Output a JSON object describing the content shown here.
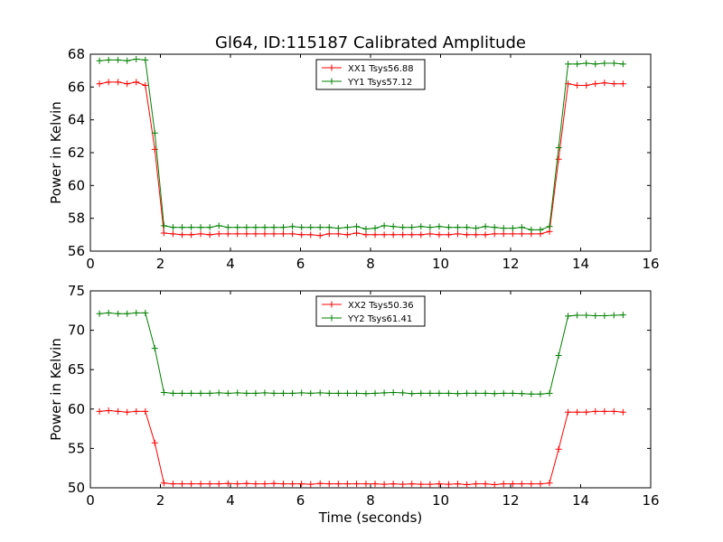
{
  "figure": {
    "title": "Gl64, ID:115187 Calibrated Amplitude"
  },
  "chart_data": [
    {
      "type": "line",
      "title": "Gl64, ID:115187 Calibrated Amplitude",
      "xlabel": "",
      "ylabel": "Power in Kelvin",
      "xlim": [
        0,
        16
      ],
      "ylim": [
        56,
        68
      ],
      "xticks": [
        0,
        2,
        4,
        6,
        8,
        10,
        12,
        14,
        16
      ],
      "yticks": [
        56,
        58,
        60,
        62,
        64,
        66,
        68
      ],
      "grid": false,
      "legend_position": "top-center",
      "x": [
        0.26,
        0.52,
        0.79,
        1.05,
        1.31,
        1.57,
        1.84,
        2.1,
        2.36,
        2.62,
        2.88,
        3.15,
        3.41,
        3.67,
        3.93,
        4.2,
        4.46,
        4.72,
        4.98,
        5.24,
        5.51,
        5.77,
        6.03,
        6.29,
        6.56,
        6.82,
        7.08,
        7.34,
        7.6,
        7.87,
        8.13,
        8.39,
        8.65,
        8.92,
        9.18,
        9.44,
        9.7,
        9.96,
        10.23,
        10.49,
        10.75,
        11.01,
        11.28,
        11.54,
        11.8,
        12.06,
        12.32,
        12.59,
        12.85,
        13.11,
        13.37,
        13.64,
        13.9,
        14.16,
        14.42,
        14.68,
        14.95,
        15.21
      ],
      "series": [
        {
          "name": "XX1 Tsys56.88",
          "color": "#ff0000",
          "values": [
            66.2,
            66.3,
            66.3,
            66.2,
            66.3,
            66.1,
            62.2,
            57.1,
            57.05,
            57.0,
            57.0,
            57.05,
            57.0,
            57.05,
            57.05,
            57.05,
            57.05,
            57.05,
            57.05,
            57.05,
            57.05,
            57.05,
            57.0,
            57.0,
            56.95,
            57.05,
            57.05,
            57.0,
            57.1,
            57.0,
            57.0,
            57.0,
            57.0,
            57.0,
            57.0,
            57.0,
            57.05,
            57.0,
            57.0,
            57.05,
            57.0,
            57.0,
            57.0,
            57.05,
            57.05,
            57.05,
            57.05,
            57.05,
            57.05,
            57.2,
            61.6,
            66.2,
            66.1,
            66.1,
            66.2,
            66.25,
            66.2,
            66.2
          ]
        },
        {
          "name": "YY1 Tsys57.12",
          "color": "#008000",
          "values": [
            67.6,
            67.65,
            67.65,
            67.6,
            67.7,
            67.65,
            63.2,
            57.55,
            57.45,
            57.45,
            57.45,
            57.45,
            57.45,
            57.55,
            57.45,
            57.45,
            57.45,
            57.45,
            57.45,
            57.45,
            57.45,
            57.5,
            57.45,
            57.45,
            57.45,
            57.45,
            57.4,
            57.45,
            57.5,
            57.35,
            57.4,
            57.55,
            57.5,
            57.45,
            57.45,
            57.5,
            57.45,
            57.5,
            57.45,
            57.45,
            57.45,
            57.4,
            57.5,
            57.45,
            57.4,
            57.4,
            57.45,
            57.3,
            57.3,
            57.5,
            62.3,
            67.4,
            67.4,
            67.45,
            67.4,
            67.45,
            67.45,
            67.4
          ]
        }
      ]
    },
    {
      "type": "line",
      "title": "",
      "xlabel": "Time (seconds)",
      "ylabel": "Power in Kelvin",
      "xlim": [
        0,
        16
      ],
      "ylim": [
        50,
        75
      ],
      "xticks": [
        0,
        2,
        4,
        6,
        8,
        10,
        12,
        14,
        16
      ],
      "yticks": [
        50,
        55,
        60,
        65,
        70,
        75
      ],
      "grid": false,
      "legend_position": "top-center",
      "x": [
        0.26,
        0.52,
        0.79,
        1.05,
        1.31,
        1.57,
        1.84,
        2.1,
        2.36,
        2.62,
        2.88,
        3.15,
        3.41,
        3.67,
        3.93,
        4.2,
        4.46,
        4.72,
        4.98,
        5.24,
        5.51,
        5.77,
        6.03,
        6.29,
        6.56,
        6.82,
        7.08,
        7.34,
        7.6,
        7.87,
        8.13,
        8.39,
        8.65,
        8.92,
        9.18,
        9.44,
        9.7,
        9.96,
        10.23,
        10.49,
        10.75,
        11.01,
        11.28,
        11.54,
        11.8,
        12.06,
        12.32,
        12.59,
        12.85,
        13.11,
        13.37,
        13.64,
        13.9,
        14.16,
        14.42,
        14.68,
        14.95,
        15.21
      ],
      "series": [
        {
          "name": "XX2 Tsys50.36",
          "color": "#ff0000",
          "values": [
            59.7,
            59.8,
            59.7,
            59.6,
            59.7,
            59.7,
            55.7,
            50.6,
            50.5,
            50.5,
            50.5,
            50.5,
            50.5,
            50.5,
            50.55,
            50.5,
            50.55,
            50.5,
            50.5,
            50.55,
            50.5,
            50.5,
            50.5,
            50.45,
            50.55,
            50.5,
            50.5,
            50.5,
            50.5,
            50.5,
            50.5,
            50.45,
            50.5,
            50.45,
            50.5,
            50.45,
            50.45,
            50.5,
            50.45,
            50.5,
            50.4,
            50.5,
            50.5,
            50.4,
            50.5,
            50.5,
            50.5,
            50.5,
            50.5,
            50.6,
            54.9,
            59.6,
            59.6,
            59.6,
            59.7,
            59.7,
            59.7,
            59.6
          ]
        },
        {
          "name": "YY2 Tsys61.41",
          "color": "#008000",
          "values": [
            72.1,
            72.2,
            72.1,
            72.1,
            72.2,
            72.2,
            67.7,
            62.1,
            62.0,
            62.0,
            62.0,
            62.0,
            62.0,
            62.05,
            62.0,
            62.05,
            62.0,
            62.0,
            62.05,
            62.0,
            62.0,
            62.0,
            62.05,
            62.0,
            62.05,
            62.0,
            62.0,
            62.0,
            62.0,
            61.95,
            62.0,
            62.05,
            62.1,
            62.05,
            61.95,
            62.0,
            62.0,
            62.0,
            62.0,
            61.95,
            62.0,
            62.0,
            62.0,
            61.95,
            62.0,
            62.0,
            61.95,
            61.9,
            61.9,
            62.0,
            66.8,
            71.8,
            71.9,
            71.9,
            71.85,
            71.85,
            71.9,
            71.95
          ]
        }
      ]
    }
  ]
}
